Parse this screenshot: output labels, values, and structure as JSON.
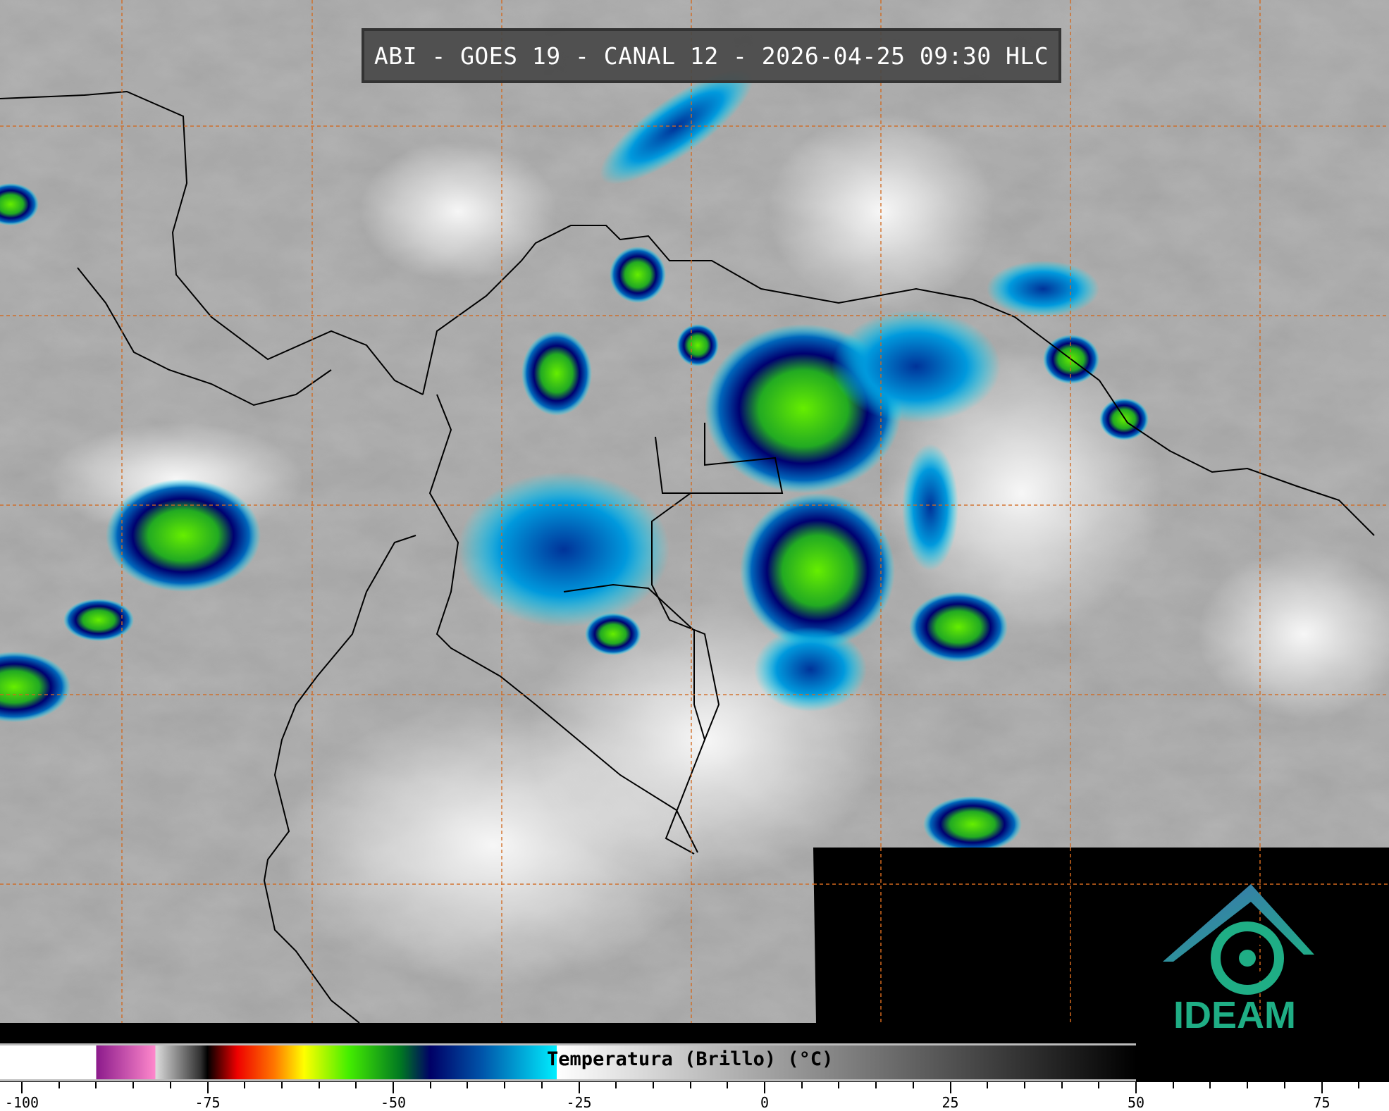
{
  "title": "ABI - GOES 19 - CANAL 12 - 2026-04-25 09:30 HLC",
  "colorbar": {
    "label": "Temperatura (Brillo) (°C)",
    "range": [
      -100,
      50
    ],
    "ticks": [
      "-100",
      "-75",
      "-50",
      "-25",
      "0",
      "25",
      "50",
      "75"
    ],
    "tick_values": [
      -100,
      -75,
      -50,
      -25,
      0,
      25,
      50,
      75
    ],
    "color_stops": [
      {
        "t": -103,
        "c": "#ffffff"
      },
      {
        "t": -90,
        "c": "#ffffff"
      },
      {
        "t": -90,
        "c": "#8b1a8b"
      },
      {
        "t": -82,
        "c": "#ff88cc"
      },
      {
        "t": -82,
        "c": "#dddddd"
      },
      {
        "t": -76,
        "c": "#333333"
      },
      {
        "t": -75,
        "c": "#000000"
      },
      {
        "t": -71,
        "c": "#ee0000"
      },
      {
        "t": -66,
        "c": "#ff7700"
      },
      {
        "t": -62,
        "c": "#ffff00"
      },
      {
        "t": -56,
        "c": "#44ee00"
      },
      {
        "t": -49,
        "c": "#007722"
      },
      {
        "t": -45,
        "c": "#000066"
      },
      {
        "t": -38,
        "c": "#0055aa"
      },
      {
        "t": -28,
        "c": "#00eeff"
      },
      {
        "t": -28,
        "c": "#ffffff"
      },
      {
        "t": 50,
        "c": "#000000"
      }
    ]
  },
  "logo": {
    "text": "IDEAM",
    "color": "#1fae85"
  },
  "grid_color": "#d2691e"
}
